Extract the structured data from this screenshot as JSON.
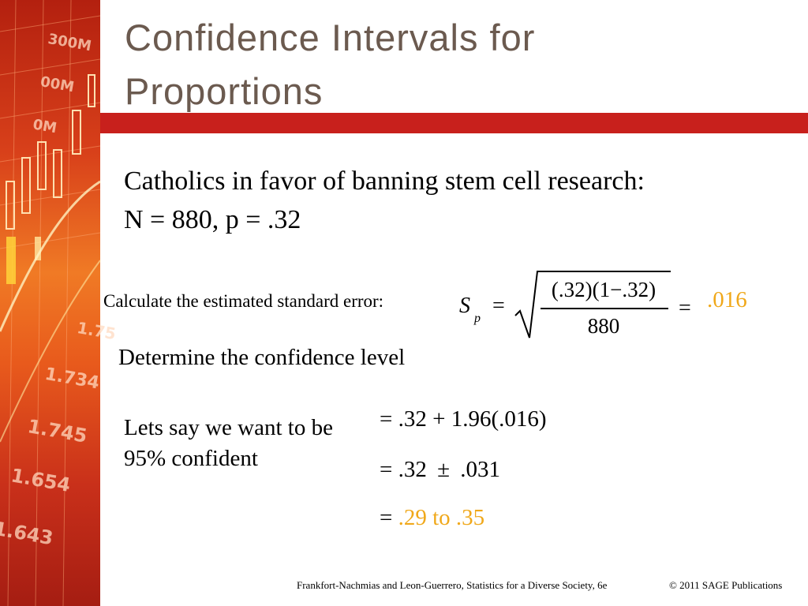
{
  "slide": {
    "title": "Confidence Intervals for Proportions",
    "title_lines": [
      "Confidence Intervals for",
      "Proportions"
    ],
    "problem_line1": "Catholics in favor of banning  stem cell research:",
    "problem_line2": "N = 880, p = .32",
    "se_label": "Calculate the estimated standard error:",
    "formula": {
      "symbol": "S",
      "subscript": "p",
      "equals": "=",
      "numerator": "(.32)(1−.32)",
      "denominator": "880",
      "result_equals": "=",
      "result": ".016"
    },
    "confidence_heading": "Determine the confidence level",
    "want_text": "Lets say we want to be 95% confident",
    "calc_line1": "= .32 + 1.96(.016)",
    "calc_line2_prefix": "= .32",
    "calc_line2_pm": "±",
    "calc_line2_suffix": ".031",
    "calc_line3_prefix": "=",
    "calc_line3_result": ".29 to .35",
    "footer_citation": "Frankfort-Nachmias and Leon-Guerrero, Statistics for a Diverse Society, 6e",
    "footer_copyright": "© 2011 SAGE Publications"
  },
  "sidebar_figures": [
    "300M",
    "00M",
    "0M",
    "1.75",
    "1.734",
    "1.745",
    "1.654",
    "1.643"
  ],
  "colors": {
    "title": "#6b5a4f",
    "title_bar": "#c8201c",
    "accent": "#f0a81a",
    "text": "#000000"
  }
}
